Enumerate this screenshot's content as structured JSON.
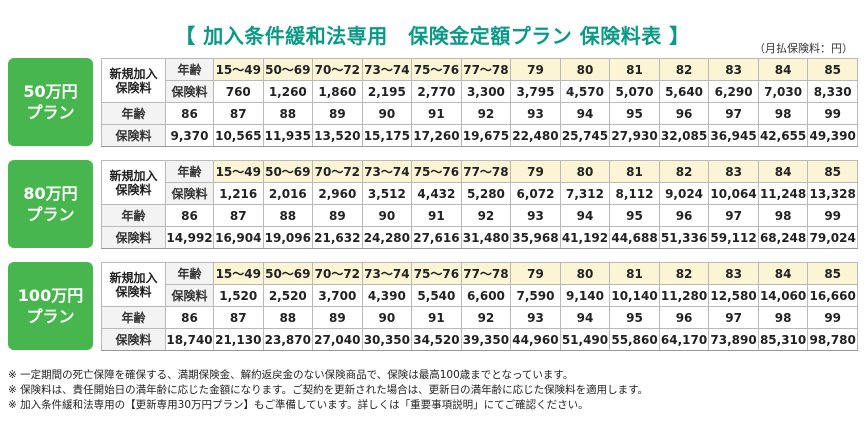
{
  "title": {
    "open_bracket": "【",
    "text": "加入条件緩和法専用　保険金定額プラン 保険料表",
    "close_bracket": "】"
  },
  "unit_note": "（月払保険料：円）",
  "labels": {
    "new_join_line1": "新規加入",
    "new_join_line2": "保険料",
    "age": "年齢",
    "premium": "保険料"
  },
  "plans": [
    {
      "name_line1": "50万円",
      "name_line2": "プラン",
      "ages1": [
        "15～49",
        "50～69",
        "70～72",
        "73～74",
        "75～76",
        "77～78",
        "79",
        "80",
        "81",
        "82",
        "83",
        "84",
        "85"
      ],
      "premiums1": [
        "760",
        "1,260",
        "1,860",
        "2,195",
        "2,770",
        "3,300",
        "3,795",
        "4,570",
        "5,070",
        "5,640",
        "6,290",
        "7,030",
        "8,330"
      ],
      "ages2": [
        "86",
        "87",
        "88",
        "89",
        "90",
        "91",
        "92",
        "93",
        "94",
        "95",
        "96",
        "97",
        "98",
        "99"
      ],
      "premiums2": [
        "9,370",
        "10,565",
        "11,935",
        "13,520",
        "15,175",
        "17,260",
        "19,675",
        "22,480",
        "25,745",
        "27,930",
        "32,085",
        "36,945",
        "42,655",
        "49,390"
      ]
    },
    {
      "name_line1": "80万円",
      "name_line2": "プラン",
      "ages1": [
        "15～49",
        "50～69",
        "70～72",
        "73～74",
        "75～76",
        "77～78",
        "79",
        "80",
        "81",
        "82",
        "83",
        "84",
        "85"
      ],
      "premiums1": [
        "1,216",
        "2,016",
        "2,960",
        "3,512",
        "4,432",
        "5,280",
        "6,072",
        "7,312",
        "8,112",
        "9,024",
        "10,064",
        "11,248",
        "13,328"
      ],
      "ages2": [
        "86",
        "87",
        "88",
        "89",
        "90",
        "91",
        "92",
        "93",
        "94",
        "95",
        "96",
        "97",
        "98",
        "99"
      ],
      "premiums2": [
        "14,992",
        "16,904",
        "19,096",
        "21,632",
        "24,280",
        "27,616",
        "31,480",
        "35,968",
        "41,192",
        "44,688",
        "51,336",
        "59,112",
        "68,248",
        "79,024"
      ]
    },
    {
      "name_line1": "100万円",
      "name_line2": "プラン",
      "ages1": [
        "15～49",
        "50～69",
        "70～72",
        "73～74",
        "75～76",
        "77～78",
        "79",
        "80",
        "81",
        "82",
        "83",
        "84",
        "85"
      ],
      "premiums1": [
        "1,520",
        "2,520",
        "3,700",
        "4,390",
        "5,540",
        "6,600",
        "7,590",
        "9,140",
        "10,140",
        "11,280",
        "12,580",
        "14,060",
        "16,660"
      ],
      "ages2": [
        "86",
        "87",
        "88",
        "89",
        "90",
        "91",
        "92",
        "93",
        "94",
        "95",
        "96",
        "97",
        "98",
        "99"
      ],
      "premiums2": [
        "18,740",
        "21,130",
        "23,870",
        "27,040",
        "30,350",
        "34,520",
        "39,350",
        "44,960",
        "51,490",
        "55,860",
        "64,170",
        "73,890",
        "85,310",
        "98,780"
      ]
    }
  ],
  "notes": [
    "※ 一定期間の死亡保障を確保する、満期保険金、解約返戻金のない保険商品で、保険は最高100歳までとなっています。",
    "※ 保険料は、責任開始日の満年齢に応じた金額になります。ご契約を更新された場合は、更新日の満年齢に応じた保険料を適用します。",
    "※ 加入条件緩和法専用の【更新専用30万円プラン】もご準備しています。詳しくは「重要事項説明」にてご確認ください。"
  ]
}
